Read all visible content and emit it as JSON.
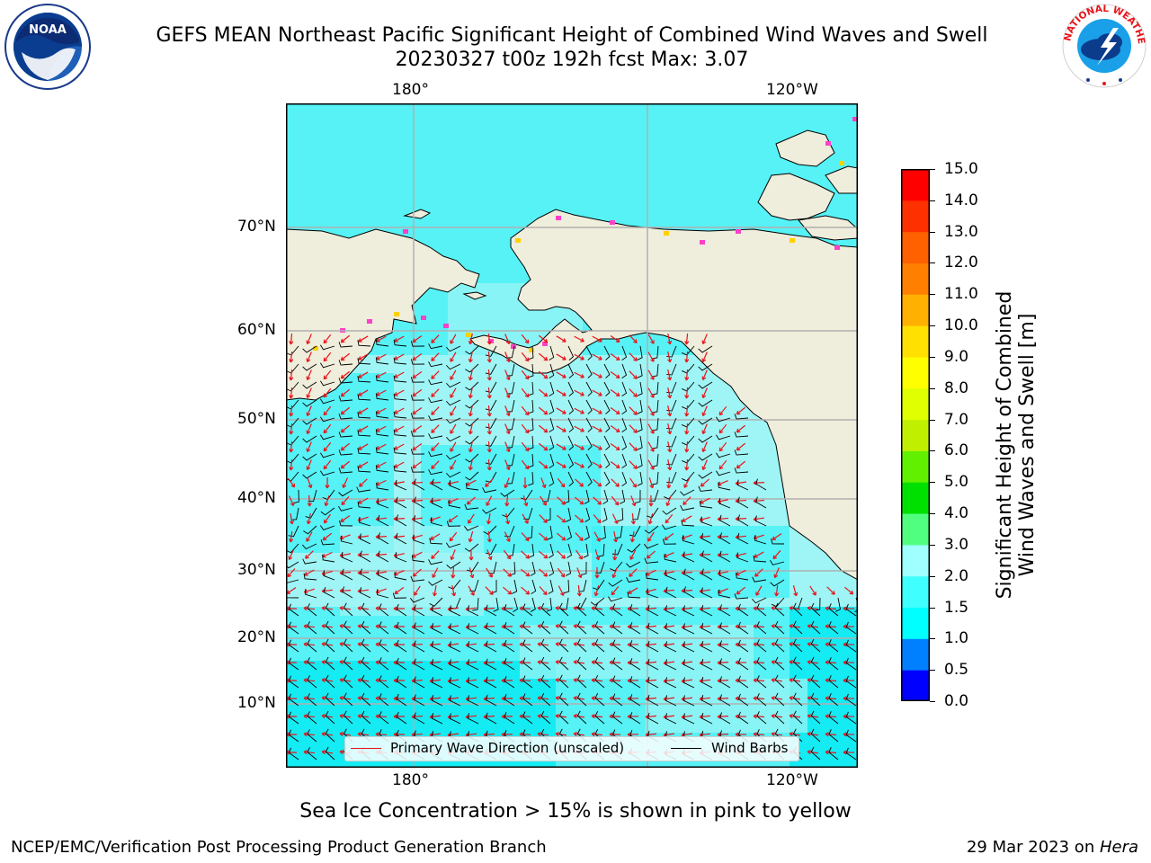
{
  "title_line1": "GEFS MEAN Northeast Pacific Significant Height of Combined Wind Waves and Swell",
  "title_line2": "20230327 t00z 192h fcst   Max: 3.07",
  "logos": {
    "left": {
      "icon": "noaa-logo",
      "text": "NOAA"
    },
    "right": {
      "icon": "nws-logo",
      "text": "NATIONAL WEATHER SERVICE"
    }
  },
  "lon_labels": [
    "180°",
    "120°W"
  ],
  "lat_labels": [
    "70°N",
    "60°N",
    "50°N",
    "40°N",
    "30°N",
    "20°N",
    "10°N"
  ],
  "legend": {
    "wave_label": "Primary Wave Direction (unscaled)",
    "wind_label": "Wind Barbs",
    "wave_color": "#e8141a",
    "wind_color": "#000000"
  },
  "colorbar": {
    "label_line1": "Significant Height of Combined",
    "label_line2": "Wind Waves and Swell [m]",
    "ticks": [
      "0.0",
      "0.5",
      "1.0",
      "1.5",
      "2.0",
      "3.0",
      "4.0",
      "5.0",
      "6.0",
      "7.0",
      "8.0",
      "9.0",
      "10.0",
      "11.0",
      "12.0",
      "13.0",
      "14.0",
      "15.0"
    ],
    "colors": [
      "#0000ff",
      "#0080ff",
      "#00ffff",
      "#40ffff",
      "#a0ffff",
      "#50ff80",
      "#00e000",
      "#60f000",
      "#c0f000",
      "#e0ff00",
      "#ffff00",
      "#ffe000",
      "#ffb000",
      "#ff8000",
      "#ff6000",
      "#ff3000",
      "#ff0000"
    ]
  },
  "map_colors": {
    "land": "#efeddb",
    "ocean_low": "#9ff5f5",
    "ocean_mid": "#3df0f5",
    "ocean_hi": "#00e8f2",
    "ice": "#ff40c8",
    "grid": "#b0b0b0"
  },
  "note": "Sea Ice Concentration > 15% is shown in pink to yellow",
  "footer_left": "NCEP/EMC/Verification Post Processing Product Generation Branch",
  "footer_right_date": "29 Mar 2023 on ",
  "footer_right_host": "Hera"
}
